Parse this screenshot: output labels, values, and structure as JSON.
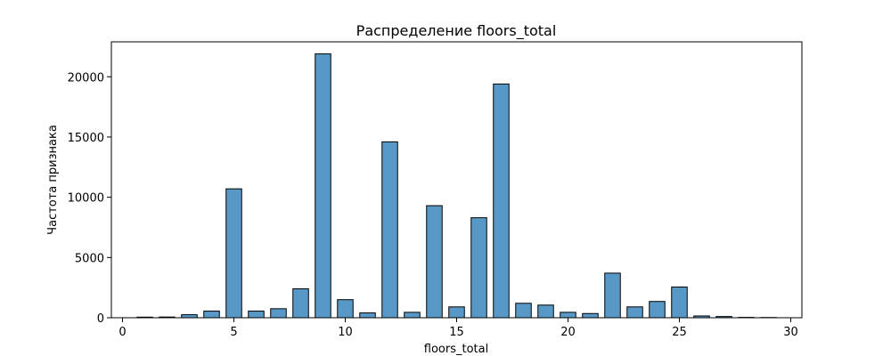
{
  "chart_data": {
    "type": "bar",
    "title": "Распределение floors_total",
    "xlabel": "floors_total",
    "ylabel": "Частота признака",
    "xlim": [
      -0.5,
      30.5
    ],
    "ylim": [
      0,
      22900
    ],
    "xticks": [
      0,
      5,
      10,
      15,
      20,
      25,
      30
    ],
    "yticks": [
      0,
      5000,
      10000,
      15000,
      20000
    ],
    "bar_color": "#5898c6",
    "bar_edge_color": "#000000",
    "bins": [
      {
        "x0": 0.5,
        "x1": 1.5,
        "count": 50
      },
      {
        "x0": 1.5,
        "x1": 2.5,
        "count": 60
      },
      {
        "x0": 2.5,
        "x1": 3.5,
        "count": 250
      },
      {
        "x0": 3.5,
        "x1": 4.5,
        "count": 550
      },
      {
        "x0": 4.5,
        "x1": 5.5,
        "count": 10700
      },
      {
        "x0": 5.5,
        "x1": 6.5,
        "count": 550
      },
      {
        "x0": 6.5,
        "x1": 7.5,
        "count": 750
      },
      {
        "x0": 7.5,
        "x1": 8.5,
        "count": 2400
      },
      {
        "x0": 8.5,
        "x1": 9.5,
        "count": 21900
      },
      {
        "x0": 9.5,
        "x1": 10.5,
        "count": 1500
      },
      {
        "x0": 10.5,
        "x1": 11.5,
        "count": 400
      },
      {
        "x0": 11.5,
        "x1": 12.5,
        "count": 14600
      },
      {
        "x0": 12.5,
        "x1": 13.5,
        "count": 450
      },
      {
        "x0": 13.5,
        "x1": 14.5,
        "count": 9300
      },
      {
        "x0": 14.5,
        "x1": 15.5,
        "count": 900
      },
      {
        "x0": 15.5,
        "x1": 16.5,
        "count": 8300
      },
      {
        "x0": 16.5,
        "x1": 17.5,
        "count": 19400
      },
      {
        "x0": 17.5,
        "x1": 18.5,
        "count": 1200
      },
      {
        "x0": 18.5,
        "x1": 19.5,
        "count": 1050
      },
      {
        "x0": 19.5,
        "x1": 20.5,
        "count": 450
      },
      {
        "x0": 20.5,
        "x1": 21.5,
        "count": 350
      },
      {
        "x0": 21.5,
        "x1": 22.5,
        "count": 3700
      },
      {
        "x0": 22.5,
        "x1": 23.5,
        "count": 900
      },
      {
        "x0": 23.5,
        "x1": 24.5,
        "count": 1350
      },
      {
        "x0": 24.5,
        "x1": 25.5,
        "count": 2550
      },
      {
        "x0": 25.5,
        "x1": 26.5,
        "count": 150
      },
      {
        "x0": 26.5,
        "x1": 27.5,
        "count": 100
      },
      {
        "x0": 27.5,
        "x1": 28.5,
        "count": 30
      },
      {
        "x0": 28.5,
        "x1": 29.5,
        "count": 20
      }
    ]
  }
}
